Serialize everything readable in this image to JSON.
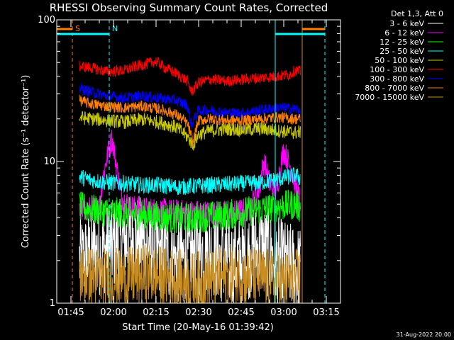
{
  "chart_data": {
    "type": "line",
    "title": "RHESSI Observing Summary Count Rates, Corrected",
    "xlabel": "Start Time (20-May-16 01:39:42)",
    "ylabel": "Corrected Count Rate (s⁻¹ detector⁻¹)",
    "yscale": "log",
    "ylim": [
      1,
      100
    ],
    "xlim_minutes": [
      100,
      200
    ],
    "x_tick_labels": [
      "01:45",
      "02:00",
      "02:15",
      "02:30",
      "02:45",
      "03:00",
      "03:15"
    ],
    "x_tick_minutes": [
      105,
      120,
      135,
      150,
      165,
      180,
      195
    ],
    "y_tick_labels": [
      "1",
      "10",
      "100"
    ],
    "y_tick_values": [
      1,
      10,
      100
    ],
    "legend_title": "Det 1,3, Att 0",
    "legend_placement": "right",
    "footer_date": "31-Aug-2022 20:00",
    "markers": [
      {
        "label": "S",
        "time_min": 105.5,
        "color": "#ff8000"
      },
      {
        "label": "N",
        "time_min": 118.5,
        "color": "#00ffff"
      }
    ],
    "vertical_lines": [
      {
        "time_min": 105.5,
        "color": "#ff8000",
        "style": "dashed"
      },
      {
        "time_min": 118.5,
        "color": "#00ffff",
        "style": "dashed"
      },
      {
        "time_min": 177,
        "color": "#00ffff",
        "style": "solid"
      },
      {
        "time_min": 186.5,
        "color": "#c88c1e",
        "style": "solid"
      },
      {
        "time_min": 194.5,
        "color": "#00ffff",
        "style": "dashed"
      }
    ],
    "series": [
      {
        "name": "3 - 6 keV",
        "color": "#ffffff",
        "times": [
          108,
          115,
          122,
          127,
          131,
          137,
          143,
          149,
          153,
          157,
          161,
          166,
          172,
          177,
          182,
          186
        ],
        "values": [
          2.0,
          2.3,
          2.6,
          2.9,
          2.7,
          2.2,
          2.0,
          2.2,
          2.4,
          2.1,
          1.9,
          2.1,
          2.5,
          2.0,
          1.8,
          1.7
        ]
      },
      {
        "name": "6 - 12 keV",
        "color": "#ff00ff",
        "times": [
          108,
          115,
          119.5,
          120.5,
          121.5,
          123,
          126,
          131,
          137,
          143,
          149,
          155,
          161,
          168,
          171.5,
          173,
          175,
          177.5,
          180,
          184,
          186
        ],
        "values": [
          4.5,
          4.8,
          14.5,
          11.0,
          8.0,
          5.5,
          4.8,
          4.6,
          4.5,
          4.4,
          4.4,
          4.3,
          4.3,
          4.6,
          6.5,
          10.0,
          7.0,
          6.0,
          12.0,
          7.0,
          5.0
        ]
      },
      {
        "name": "12 - 25 keV",
        "color": "#00ff00",
        "times": [
          108,
          112,
          118,
          124,
          130,
          136,
          142,
          148,
          154,
          160,
          166,
          172,
          178,
          184,
          186
        ],
        "values": [
          4.8,
          4.6,
          4.4,
          4.3,
          4.2,
          4.1,
          4.0,
          4.0,
          4.1,
          4.2,
          4.4,
          4.6,
          4.8,
          5.0,
          4.7
        ]
      },
      {
        "name": "25 - 50 keV",
        "color": "#00ffff",
        "times": [
          108,
          112,
          118,
          124,
          130,
          136,
          142,
          148,
          154,
          160,
          166,
          172,
          178,
          184,
          186
        ],
        "values": [
          7.8,
          7.4,
          7.1,
          7.0,
          6.8,
          6.8,
          6.6,
          6.7,
          6.8,
          6.9,
          7.0,
          7.1,
          7.5,
          8.0,
          7.6
        ]
      },
      {
        "name": "50 - 100 keV",
        "color": "#c8c800",
        "times": [
          108,
          112,
          118,
          124,
          130,
          136,
          142,
          146,
          148,
          150,
          154,
          160,
          166,
          172,
          178,
          184,
          186
        ],
        "values": [
          20.5,
          20.0,
          19.5,
          19.0,
          19.8,
          19.0,
          17.5,
          15.0,
          13.0,
          15.5,
          16.5,
          17.0,
          16.8,
          17.0,
          16.5,
          16.0,
          16.2
        ]
      },
      {
        "name": "100 - 300 keV",
        "color": "#ff0000",
        "times": [
          108,
          112,
          118,
          124,
          128,
          132,
          135,
          138,
          142,
          146,
          147.5,
          150,
          154,
          160,
          166,
          172,
          178,
          182,
          184,
          186
        ],
        "values": [
          47,
          46,
          43,
          44,
          47,
          49,
          51,
          46,
          42,
          37,
          31,
          36,
          38,
          37,
          38,
          39,
          40,
          41,
          44,
          43
        ]
      },
      {
        "name": "300 - 800 keV",
        "color": "#0000ff",
        "times": [
          108,
          112,
          118,
          124,
          130,
          136,
          142,
          146,
          147.5,
          150,
          154,
          160,
          166,
          172,
          178,
          184,
          186
        ],
        "values": [
          33,
          31,
          29,
          28,
          29,
          28,
          27,
          25,
          18,
          23,
          23,
          22,
          22,
          23,
          24,
          23.5,
          23
        ]
      },
      {
        "name": "800 - 7000 keV",
        "color": "#ff8000",
        "times": [
          108,
          112,
          118,
          124,
          130,
          136,
          142,
          146,
          148,
          150,
          154,
          160,
          166,
          172,
          178,
          184,
          186
        ],
        "values": [
          27,
          25.5,
          24.5,
          24,
          24.5,
          23.5,
          21.5,
          18.5,
          13.5,
          19.5,
          20,
          19.5,
          19.5,
          20,
          20.5,
          20,
          20
        ]
      },
      {
        "name": "7000 - 15000 keV",
        "color": "#c88c1e",
        "times": [
          108,
          116,
          124,
          132,
          140,
          148,
          156,
          164,
          172,
          180,
          186
        ],
        "values": [
          1.6,
          1.5,
          1.5,
          1.6,
          1.5,
          1.4,
          1.5,
          1.6,
          1.5,
          1.4,
          1.5
        ]
      }
    ]
  }
}
